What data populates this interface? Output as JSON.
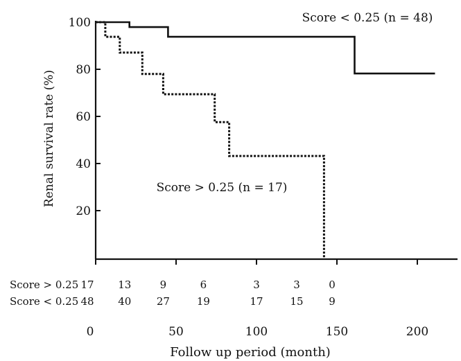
{
  "chart_data": {
    "type": "line",
    "title": "",
    "xlabel": "Follow up period (month)",
    "ylabel": "Renal survival rate (%)",
    "xlim": [
      0,
      225
    ],
    "ylim": [
      0,
      100
    ],
    "x_ticks": [
      0,
      50,
      100,
      150,
      200
    ],
    "y_ticks": [
      20,
      40,
      60,
      80,
      100
    ],
    "grid": false,
    "series": [
      {
        "name": "Score < 0.25 (n = 48)",
        "style": "solid",
        "color": "#111111",
        "x": [
          0,
          21,
          21,
          45,
          45,
          161,
          161,
          211
        ],
        "y": [
          100,
          100,
          97.9,
          97.9,
          93.8,
          93.8,
          78.2,
          78.2
        ]
      },
      {
        "name": "Score > 0.25 (n = 17)",
        "style": "dotted",
        "color": "#111111",
        "x": [
          0,
          6,
          6,
          15,
          15,
          29,
          29,
          42,
          42,
          74,
          74,
          83,
          83,
          142,
          142
        ],
        "y": [
          100,
          100,
          93.8,
          93.8,
          87.1,
          87.1,
          78,
          78,
          69.4,
          69.4,
          57.6,
          57.6,
          43.2,
          43.2,
          0
        ]
      }
    ],
    "risk_table": {
      "times": [
        0,
        18,
        42,
        67,
        100,
        125,
        147
      ],
      "rows": [
        {
          "label": "Score > 0.25",
          "counts": [
            "17",
            "13",
            "9",
            "6",
            "3",
            "3",
            "0"
          ]
        },
        {
          "label": "Score < 0.25",
          "counts": [
            "48",
            "40",
            "27",
            "19",
            "17",
            "15",
            "9"
          ]
        }
      ]
    }
  }
}
